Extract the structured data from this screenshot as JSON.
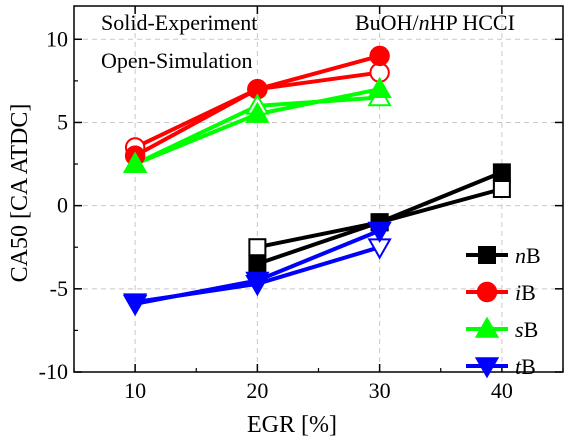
{
  "chart_data": {
    "type": "line",
    "xlabel": "EGR [%]",
    "ylabel": "CA50 [CA ATDC]",
    "xlim": [
      5,
      45
    ],
    "ylim": [
      -10,
      12
    ],
    "xticks": [
      10,
      20,
      30,
      40
    ],
    "yticks": [
      -10,
      -5,
      0,
      5,
      10
    ],
    "grid": true,
    "legend_position": "bottom-right",
    "annotations": {
      "top_left_line1": "Solid-Experiment",
      "top_left_line2": "Open-Simulation",
      "top_right_prefix": "BuOH/",
      "top_right_italic": "n",
      "top_right_suffix": "HP HCCI"
    },
    "series": [
      {
        "name": "nB",
        "legend_italic": "n",
        "legend_suffix": "B",
        "color": "#000000",
        "marker": "square",
        "experiment": {
          "x": [
            20,
            30,
            40
          ],
          "y": [
            -3.5,
            -1.0,
            2.0
          ]
        },
        "simulation": {
          "x": [
            20,
            30,
            40
          ],
          "y": [
            -2.5,
            -1.0,
            1.0
          ]
        }
      },
      {
        "name": "iB",
        "legend_italic": "i",
        "legend_suffix": "B",
        "color": "#ff0000",
        "marker": "circle",
        "experiment": {
          "x": [
            10,
            20,
            30
          ],
          "y": [
            3.0,
            7.0,
            9.0
          ]
        },
        "simulation": {
          "x": [
            10,
            20,
            30
          ],
          "y": [
            3.5,
            7.0,
            8.0
          ]
        }
      },
      {
        "name": "sB",
        "legend_italic": "s",
        "legend_suffix": "B",
        "color": "#00ff00",
        "marker": "triangle-up",
        "experiment": {
          "x": [
            10,
            20,
            30
          ],
          "y": [
            2.5,
            5.5,
            7.0
          ]
        },
        "simulation": {
          "x": [
            10,
            20,
            30
          ],
          "y": [
            2.5,
            6.0,
            6.5
          ]
        }
      },
      {
        "name": "tB",
        "legend_italic": "t",
        "legend_suffix": "B",
        "color": "#0000ff",
        "marker": "triangle-down",
        "experiment": {
          "x": [
            10,
            20,
            30
          ],
          "y": [
            -5.9,
            -4.5,
            -1.5
          ]
        },
        "simulation": {
          "x": [
            10,
            20,
            30
          ],
          "y": [
            -5.8,
            -4.7,
            -2.5
          ]
        }
      }
    ]
  }
}
